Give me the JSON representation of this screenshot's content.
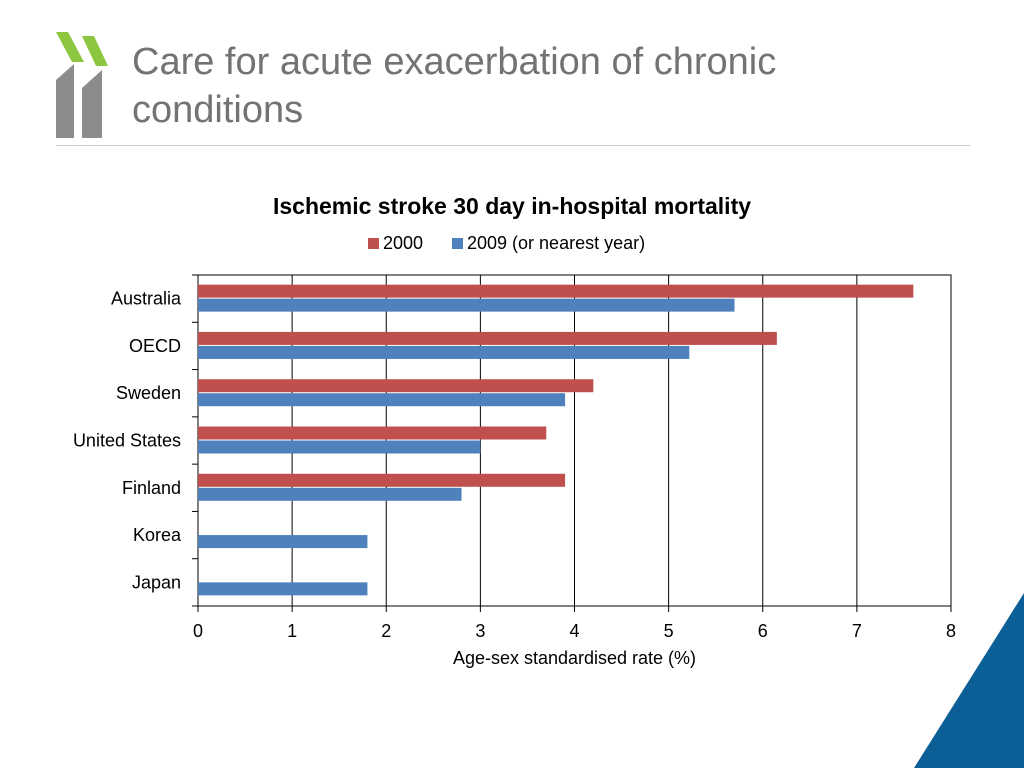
{
  "slide": {
    "title": "Care for acute exacerbation of chronic conditions",
    "colors": {
      "logo_green": "#8dc63f",
      "logo_gray": "#8c8c8c",
      "corner": "#0b5e96"
    },
    "icons": [
      "oecd-chevron-logo-icon",
      "corner-triangle-icon"
    ]
  },
  "chart_data": {
    "type": "bar",
    "orientation": "horizontal",
    "title": "Ischemic stroke 30 day in-hospital mortality",
    "xlabel": "Age-sex standardised rate (%)",
    "ylabel": "",
    "categories": [
      "Australia",
      "OECD",
      "Sweden",
      "United States",
      "Finland",
      "Korea",
      "Japan"
    ],
    "series": [
      {
        "name": "2000",
        "color": "#c0504d",
        "values": [
          7.6,
          6.15,
          4.2,
          3.7,
          3.9,
          null,
          null
        ]
      },
      {
        "name": "2009 (or nearest year)",
        "color": "#4f81bd",
        "values": [
          5.7,
          5.22,
          3.9,
          3.0,
          2.8,
          1.8,
          1.8
        ]
      }
    ],
    "xlim": [
      0,
      8
    ],
    "xticks": [
      0,
      1,
      2,
      3,
      4,
      5,
      6,
      7,
      8
    ],
    "grid": "vertical",
    "legend": "top-center"
  }
}
